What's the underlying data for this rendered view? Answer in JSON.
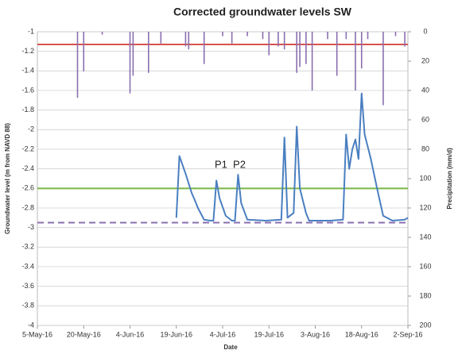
{
  "chart_data": {
    "type": "combo",
    "title": "Corrected groundwater levels SW",
    "x_label": "Date",
    "y_label": "Groundwater level (m from NAVD 88)",
    "y2_label": "Precipitation (mm/d)",
    "xlim": [
      "2016-05-05",
      "2016-09-02"
    ],
    "xticks": [
      {
        "value": "2016-05-05",
        "label": "5-May-16"
      },
      {
        "value": "2016-05-20",
        "label": "20-May-16"
      },
      {
        "value": "2016-06-04",
        "label": "4-Jun-16"
      },
      {
        "value": "2016-06-19",
        "label": "19-Jun-16"
      },
      {
        "value": "2016-07-04",
        "label": "4-Jul-16"
      },
      {
        "value": "2016-07-19",
        "label": "19-Jul-16"
      },
      {
        "value": "2016-08-03",
        "label": "3-Aug-16"
      },
      {
        "value": "2016-08-18",
        "label": "18-Aug-16"
      },
      {
        "value": "2016-09-02",
        "label": "2-Sep-16"
      }
    ],
    "ylim": [
      -4,
      -1
    ],
    "yticks": [
      -1,
      -1.2,
      -1.4,
      -1.6,
      -1.8,
      -2,
      -2.2,
      -2.4,
      -2.6,
      -2.8,
      -3,
      -3.2,
      -3.4,
      -3.6,
      -3.8,
      -4
    ],
    "y2lim": [
      0,
      200
    ],
    "y2_inverted": true,
    "y2ticks": [
      0,
      20,
      40,
      60,
      80,
      100,
      120,
      140,
      160,
      180,
      200
    ],
    "grid": true,
    "series": [
      {
        "type": "line",
        "color": "#4a7fc1",
        "x": [
          "2016-06-19",
          "2016-06-20",
          "2016-06-22",
          "2016-06-24",
          "2016-06-25",
          "2016-06-26",
          "2016-06-28",
          "2016-06-30",
          "2016-07-01",
          "2016-07-02",
          "2016-07-03",
          "2016-07-05",
          "2016-07-07",
          "2016-07-08",
          "2016-07-09",
          "2016-07-10",
          "2016-07-12",
          "2016-07-18",
          "2016-07-23",
          "2016-07-24",
          "2016-07-25",
          "2016-07-27",
          "2016-07-28",
          "2016-07-29",
          "2016-07-31",
          "2016-08-01",
          "2016-08-08",
          "2016-08-12",
          "2016-08-13",
          "2016-08-14",
          "2016-08-15",
          "2016-08-16",
          "2016-08-17",
          "2016-08-18",
          "2016-08-19",
          "2016-08-21",
          "2016-08-23",
          "2016-08-25",
          "2016-08-28",
          "2016-09-01",
          "2016-09-02"
        ],
        "values": [
          -2.9,
          -2.27,
          -2.45,
          -2.65,
          -2.72,
          -2.8,
          -2.92,
          -2.93,
          -2.93,
          -2.52,
          -2.7,
          -2.88,
          -2.93,
          -2.93,
          -2.46,
          -2.75,
          -2.92,
          -2.93,
          -2.92,
          -2.08,
          -2.9,
          -2.85,
          -1.97,
          -2.6,
          -2.85,
          -2.93,
          -2.93,
          -2.92,
          -2.05,
          -2.4,
          -2.2,
          -2.1,
          -2.3,
          -1.63,
          -2.05,
          -2.3,
          -2.6,
          -2.88,
          -2.93,
          -2.92,
          -2.9
        ]
      },
      {
        "type": "bar",
        "axis": "y2",
        "color": "#8a6fb0",
        "x": [
          "2016-05-18",
          "2016-05-20",
          "2016-05-26",
          "2016-06-04",
          "2016-06-05",
          "2016-06-10",
          "2016-06-14",
          "2016-06-22",
          "2016-06-23",
          "2016-06-28",
          "2016-07-04",
          "2016-07-07",
          "2016-07-12",
          "2016-07-17",
          "2016-07-19",
          "2016-07-22",
          "2016-07-24",
          "2016-07-28",
          "2016-07-29",
          "2016-07-31",
          "2016-08-02",
          "2016-08-07",
          "2016-08-10",
          "2016-08-13",
          "2016-08-16",
          "2016-08-18",
          "2016-08-20",
          "2016-08-25",
          "2016-08-29",
          "2016-09-01"
        ],
        "values": [
          45,
          27,
          2,
          42,
          30,
          28,
          8,
          10,
          12,
          22,
          3,
          8,
          3,
          5,
          16,
          10,
          12,
          28,
          24,
          22,
          40,
          5,
          30,
          5,
          40,
          25,
          5,
          50,
          3,
          10
        ]
      }
    ],
    "hlines": [
      {
        "value": -1.13,
        "color": "#d9534f"
      },
      {
        "value": -2.6,
        "color": "#7ab648"
      },
      {
        "value": -2.95,
        "color": "#8a6fb0",
        "dashed": true
      }
    ],
    "annotations": [
      "P1",
      "P2"
    ]
  }
}
